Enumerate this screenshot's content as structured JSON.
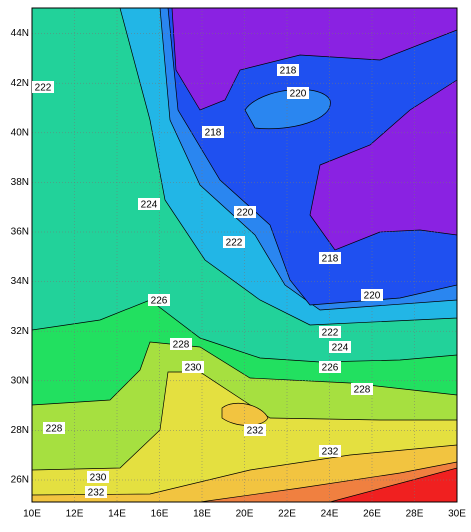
{
  "map": {
    "lon_labels": [
      "10E",
      "12E",
      "14E",
      "16E",
      "18E",
      "20E",
      "22E",
      "24E",
      "26E",
      "28E",
      "30E"
    ],
    "lat_labels": [
      "26N",
      "28N",
      "30N",
      "32N",
      "34N",
      "36N",
      "38N",
      "40N",
      "42N",
      "44N"
    ],
    "contour_labels": [
      "222",
      "218",
      "220",
      "218",
      "224",
      "220",
      "222",
      "218",
      "220",
      "226",
      "222",
      "224",
      "228",
      "226",
      "230",
      "228",
      "232",
      "228",
      "232",
      "230",
      "232"
    ]
  }
}
